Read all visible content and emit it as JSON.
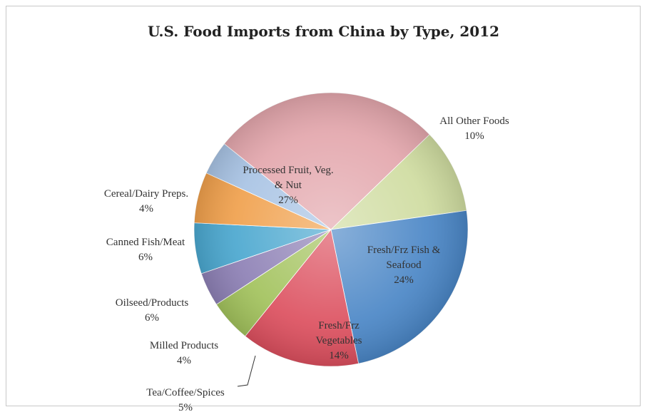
{
  "chart_data": {
    "type": "pie",
    "title": "U.S. Food Imports from China by Type, 2012",
    "slices": [
      {
        "label": [
          "All Other Foods",
          "10%"
        ],
        "value": 10,
        "color": "#cfdca0"
      },
      {
        "label": [
          "Fresh/Frz Fish &",
          "Seafood",
          "24%"
        ],
        "value": 24,
        "color": "#4a86c6"
      },
      {
        "label": [
          "Fresh/Frz",
          "Vegetables",
          "14%"
        ],
        "value": 14,
        "color": "#dc4f5e"
      },
      {
        "label": [
          "Tea/Coffee/Spices",
          "5%"
        ],
        "value": 5,
        "color": "#a2c25c"
      },
      {
        "label": [
          "Milled Products",
          "4%"
        ],
        "value": 4,
        "color": "#8d80b5"
      },
      {
        "label": [
          "Oilseed/Products",
          "6%"
        ],
        "value": 6,
        "color": "#4aa7cf"
      },
      {
        "label": [
          "Canned Fish/Meat",
          "6%"
        ],
        "value": 6,
        "color": "#f0a04c"
      },
      {
        "label": [
          "Cereal/Dairy Preps.",
          "4%"
        ],
        "value": 4,
        "color": "#a8c3e4"
      },
      {
        "label": [
          "Processed Fruit, Veg.",
          "& Nut",
          "27%"
        ],
        "value": 27,
        "color": "#e3a6ac"
      }
    ]
  }
}
